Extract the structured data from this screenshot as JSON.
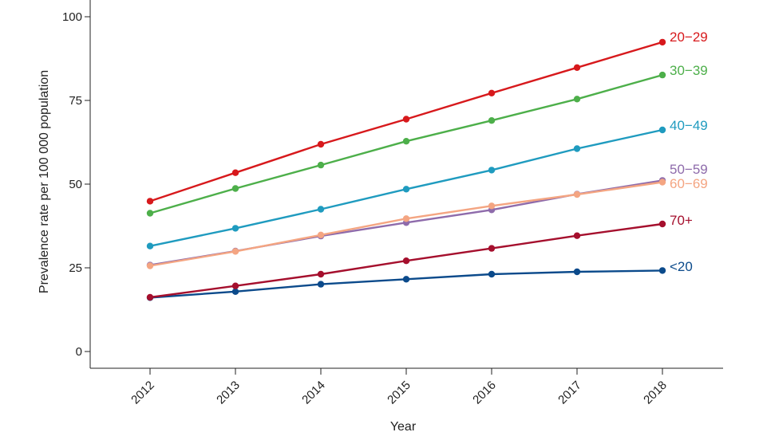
{
  "chart_data": {
    "type": "line",
    "xlabel": "Year",
    "ylabel": "Prevalence rate per 100 000 population",
    "x": [
      "2012",
      "2013",
      "2014",
      "2015",
      "2016",
      "2017",
      "2018"
    ],
    "ylim": [
      -5,
      104
    ],
    "yticks": [
      0,
      25,
      50,
      75,
      100
    ],
    "grid": false,
    "legend": "direct labels at right end of each line",
    "series": [
      {
        "name": "20−29",
        "color": "#d7191c",
        "values": [
          44.9,
          53.4,
          61.9,
          69.4,
          77.2,
          84.8,
          92.4
        ]
      },
      {
        "name": "30−39",
        "color": "#4daf4a",
        "values": [
          41.3,
          48.7,
          55.7,
          62.8,
          69.0,
          75.4,
          82.6
        ]
      },
      {
        "name": "40−49",
        "color": "#1f9bbf",
        "values": [
          31.5,
          36.8,
          42.5,
          48.5,
          54.2,
          60.6,
          66.2
        ]
      },
      {
        "name": "50−59",
        "color": "#8e6bab",
        "values": [
          25.8,
          30.0,
          34.5,
          38.5,
          42.3,
          47.0,
          51.1
        ]
      },
      {
        "name": "60−69",
        "color": "#f4a582",
        "values": [
          25.6,
          29.9,
          34.8,
          39.7,
          43.5,
          46.9,
          50.6
        ]
      },
      {
        "name": "70+",
        "color": "#a50f2d",
        "values": [
          16.2,
          19.6,
          23.1,
          27.1,
          30.8,
          34.6,
          38.1
        ]
      },
      {
        "name": "<20",
        "color": "#0b4a8b",
        "values": [
          16.1,
          17.9,
          20.1,
          21.6,
          23.1,
          23.8,
          24.2
        ]
      }
    ]
  }
}
